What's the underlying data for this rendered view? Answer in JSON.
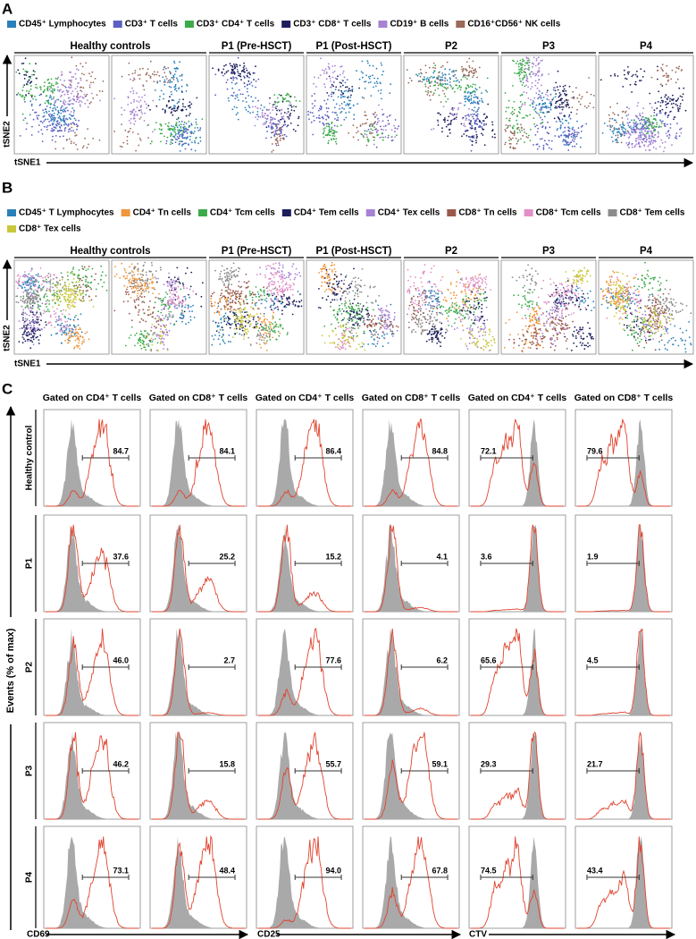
{
  "panels": [
    {
      "letter": "A",
      "legend": [
        {
          "label": "CD45⁺ Lymphocytes",
          "color": "#2b80b9"
        },
        {
          "label": "CD3⁺ T cells",
          "color": "#5b5fc2"
        },
        {
          "label": "CD3⁺ CD4⁺ T cells",
          "color": "#3cab4a"
        },
        {
          "label": "CD3⁺ CD8⁺ T cells",
          "color": "#1d1f5c"
        },
        {
          "label": "CD19⁺ B cells",
          "color": "#a783d3"
        },
        {
          "label": "CD16⁺CD56⁺ NK cells",
          "color": "#9a6a5a"
        }
      ],
      "groups": [
        "Healthy controls",
        "P1 (Pre-HSCT)",
        "P1 (Post-HSCT)",
        "P2",
        "P3",
        "P4"
      ],
      "y_axis": "tSNE2",
      "x_axis": "tSNE1"
    },
    {
      "letter": "B",
      "legend": [
        {
          "label": "CD45⁺ T Lymphocytes",
          "color": "#2b80b9"
        },
        {
          "label": "CD4⁺ Tn cells",
          "color": "#f0963c"
        },
        {
          "label": "CD4⁺ Tcm cells",
          "color": "#3cab4a"
        },
        {
          "label": "CD4⁺ Tem cells",
          "color": "#1d1f5c"
        },
        {
          "label": "CD4⁺ Tex cells",
          "color": "#a783d3"
        },
        {
          "label": "CD8⁺ Tn cells",
          "color": "#9a5a4a"
        },
        {
          "label": "CD8⁺ Tcm cells",
          "color": "#e28fc8"
        },
        {
          "label": "CD8⁺ Tem cells",
          "color": "#8c8c8c"
        },
        {
          "label": "CD8⁺ Tex cells",
          "color": "#c9c83c"
        }
      ],
      "groups": [
        "Healthy controls",
        "P1 (Pre-HSCT)",
        "P1 (Post-HSCT)",
        "P2",
        "P3",
        "P4"
      ],
      "y_axis": "tSNE2",
      "x_axis": "tSNE1"
    }
  ],
  "panel_c": {
    "letter": "C",
    "columns": [
      "Gated on CD4⁺ T cells",
      "Gated on CD8⁺ T cells",
      "Gated on CD4⁺ T cells",
      "Gated on CD8⁺ T cells",
      "Gated on CD4⁺ T cells",
      "Gated on CD8⁺ T cells"
    ],
    "rows": [
      {
        "label": "Healthy control",
        "gates": [
          "84.7",
          "84.1",
          "86.4",
          "84.8",
          "72.1",
          "79.6"
        ]
      },
      {
        "label": "P1",
        "gates": [
          "37.6",
          "25.2",
          "15.2",
          "4.1",
          "3.6",
          "1.9"
        ]
      },
      {
        "label": "P2",
        "gates": [
          "46.0",
          "2.7",
          "77.6",
          "6.2",
          "65.6",
          "4.5"
        ]
      },
      {
        "label": "P3",
        "gates": [
          "46.2",
          "15.8",
          "55.7",
          "59.1",
          "29.3",
          "21.7"
        ]
      },
      {
        "label": "P4",
        "gates": [
          "73.1",
          "48.4",
          "94.0",
          "67.8",
          "74.5",
          "43.4"
        ]
      }
    ],
    "y_axis": "Events (% of max)",
    "x_axes": [
      "CD69",
      "CD25",
      "CTV"
    ]
  }
}
